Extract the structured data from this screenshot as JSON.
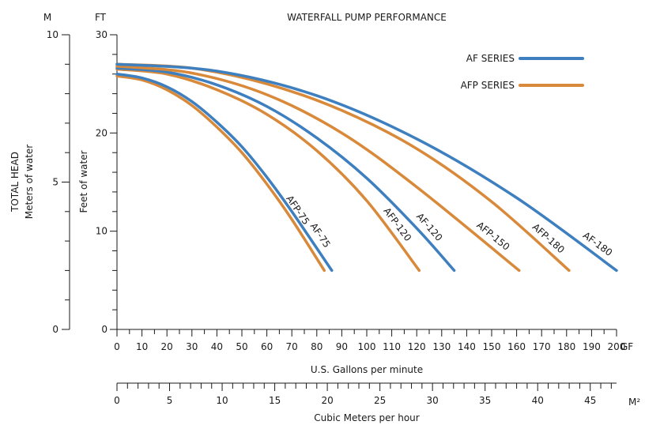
{
  "chart_data": {
    "type": "line",
    "title": "WATERFALL PUMP PERFORMANCE",
    "x_axis": {
      "label": "U.S. Gallons per minute",
      "unit": "GF",
      "range": [
        0,
        200
      ],
      "ticks": [
        0,
        10,
        20,
        30,
        40,
        50,
        60,
        70,
        80,
        90,
        100,
        110,
        120,
        130,
        140,
        150,
        160,
        170,
        180,
        190,
        200
      ]
    },
    "x2_axis": {
      "label": "Cubic Meters per hour",
      "unit": "M²",
      "range": [
        0,
        47.5
      ],
      "ticks": [
        0,
        5,
        10,
        15,
        20,
        25,
        30,
        35,
        40,
        45
      ]
    },
    "y_axis": {
      "label": "Feet of water",
      "unit": "FT",
      "range": [
        0,
        30
      ],
      "ticks": [
        0,
        10,
        20,
        30
      ]
    },
    "y2_axis": {
      "label": "TOTAL HEAD",
      "sublabel": "Meters of water",
      "unit": "M",
      "range": [
        0,
        10
      ],
      "ticks": [
        0,
        5,
        10
      ]
    },
    "legend": [
      {
        "name": "AF SERIES",
        "color": "#3d7fbf"
      },
      {
        "name": "AFP SERIES",
        "color": "#d8893a"
      }
    ],
    "series": [
      {
        "name": "AFP-75",
        "color": "#d8893a",
        "x": [
          0,
          10,
          20,
          30,
          40,
          50,
          60,
          70,
          83
        ],
        "y": [
          25.8,
          25.4,
          24.4,
          22.8,
          20.6,
          18,
          14.8,
          11.2,
          6
        ]
      },
      {
        "name": "AF-75",
        "color": "#3d7fbf",
        "x": [
          0,
          10,
          20,
          30,
          40,
          50,
          60,
          70,
          86
        ],
        "y": [
          26,
          25.6,
          24.7,
          23.2,
          21.1,
          18.6,
          15.5,
          12,
          6
        ]
      },
      {
        "name": "AFP-120",
        "color": "#d8893a",
        "x": [
          0,
          20,
          40,
          60,
          80,
          100,
          121
        ],
        "y": [
          26.5,
          26,
          24.4,
          21.9,
          18.2,
          13.1,
          6
        ]
      },
      {
        "name": "AF-120",
        "color": "#3d7fbf",
        "x": [
          0,
          20,
          40,
          60,
          80,
          100,
          120,
          135
        ],
        "y": [
          26.6,
          26.2,
          24.9,
          22.7,
          19.5,
          15.4,
          10.3,
          6
        ]
      },
      {
        "name": "AFP-150",
        "color": "#d8893a",
        "x": [
          0,
          30,
          60,
          90,
          120,
          161
        ],
        "y": [
          26.8,
          26.1,
          23.9,
          20,
          14.5,
          6
        ]
      },
      {
        "name": "AFP-180",
        "color": "#d8893a",
        "x": [
          0,
          30,
          60,
          90,
          120,
          150,
          181
        ],
        "y": [
          27,
          26.6,
          25,
          22.3,
          18.4,
          13,
          6
        ]
      },
      {
        "name": "AF-180",
        "color": "#3d7fbf",
        "x": [
          0,
          40,
          80,
          120,
          160,
          200
        ],
        "y": [
          27,
          26.3,
          23.8,
          19.4,
          13.4,
          6
        ]
      }
    ],
    "curve_labels": [
      {
        "text": "AFP-75",
        "series": "AFP-75",
        "at_x": 69
      },
      {
        "text": "AF-75",
        "series": "AF-75",
        "at_x": 78
      },
      {
        "text": "AFP-120",
        "series": "AFP-120",
        "at_x": 109
      },
      {
        "text": "AF-120",
        "series": "AF-120",
        "at_x": 122
      },
      {
        "text": "AFP-150",
        "series": "AFP-150",
        "at_x": 148
      },
      {
        "text": "AFP-180",
        "series": "AFP-180",
        "at_x": 170
      },
      {
        "text": "AF-180",
        "series": "AF-180",
        "at_x": 190
      }
    ],
    "grid": false
  }
}
